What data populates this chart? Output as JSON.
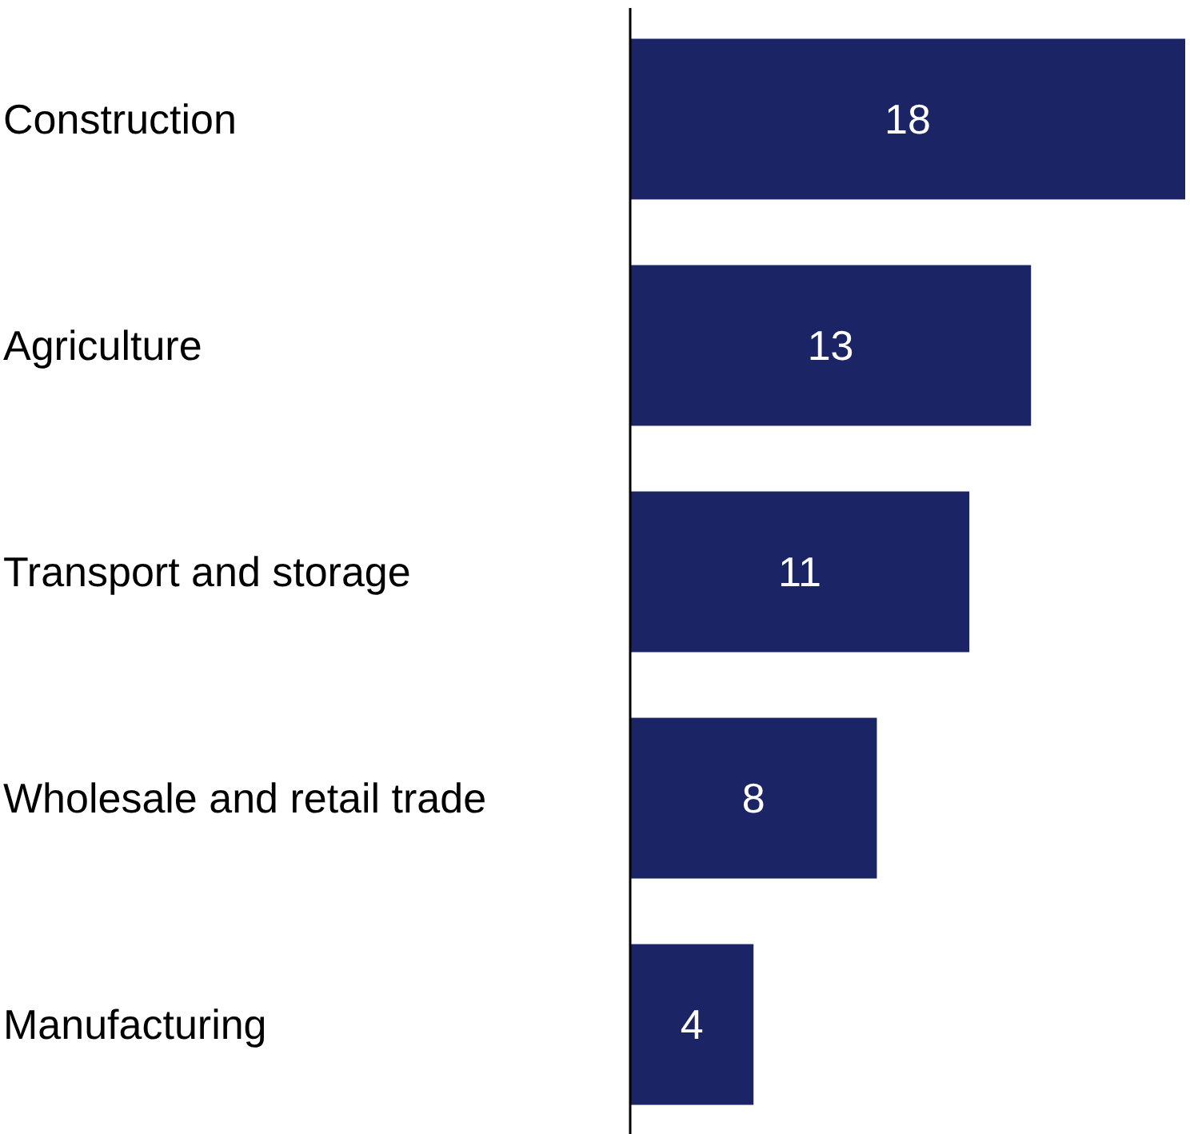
{
  "chart_data": {
    "type": "bar",
    "orientation": "horizontal",
    "categories": [
      "Construction",
      "Agriculture",
      "Transport and storage",
      "Wholesale and retail trade",
      "Manufacturing"
    ],
    "values": [
      18,
      13,
      11,
      8,
      4
    ],
    "color": "#1b2465",
    "data_labels": true
  }
}
